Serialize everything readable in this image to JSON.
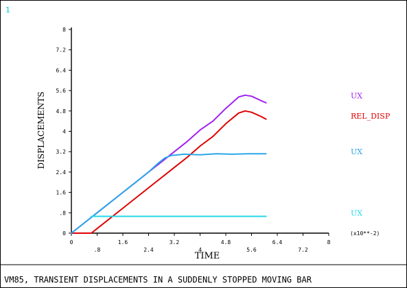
{
  "window": {
    "number": "1"
  },
  "caption": "VM85, TRANSIENT DISPLACEMENTS IN A SUDDENLY STOPPED MOVING BAR",
  "colors": {
    "frame": "#000000",
    "window_number": "#00c8d0",
    "ux_purple": "#a020f0",
    "rel_disp_red": "#e00000",
    "ux_blue": "#2aa6e8",
    "ux_cyan": "#22d8e8"
  },
  "chart_data": {
    "type": "line",
    "title": "",
    "xlabel": "TIME",
    "ylabel": "DISPLACEMENTS",
    "x_multiplier_label": "(x10**-2)",
    "xlim": [
      0,
      8
    ],
    "ylim": [
      0,
      8
    ],
    "grid": false,
    "legend": "right",
    "x_ticks": [
      {
        "value": 0,
        "label": "0"
      },
      {
        "value": 0.8,
        "label": ".8"
      },
      {
        "value": 1.6,
        "label": "1.6"
      },
      {
        "value": 2.4,
        "label": "2.4"
      },
      {
        "value": 3.2,
        "label": "3.2"
      },
      {
        "value": 4,
        "label": "4"
      },
      {
        "value": 4.8,
        "label": "4.8"
      },
      {
        "value": 5.6,
        "label": "5.6"
      },
      {
        "value": 6.4,
        "label": "6.4"
      },
      {
        "value": 7.2,
        "label": "7.2"
      },
      {
        "value": 8,
        "label": "8"
      }
    ],
    "y_ticks": [
      {
        "value": 0,
        "label": "0"
      },
      {
        "value": 0.8,
        "label": ".8"
      },
      {
        "value": 1.6,
        "label": "1.6"
      },
      {
        "value": 2.4,
        "label": "2.4"
      },
      {
        "value": 3.2,
        "label": "3.2"
      },
      {
        "value": 4,
        "label": "4"
      },
      {
        "value": 4.8,
        "label": "4.8"
      },
      {
        "value": 5.6,
        "label": "5.6"
      },
      {
        "value": 6.4,
        "label": "6.4"
      },
      {
        "value": 7.2,
        "label": "7.2"
      },
      {
        "value": 8,
        "label": "8"
      }
    ],
    "series": [
      {
        "name": "UX",
        "color": "#a020f0",
        "label_y": 5.4,
        "x": [
          0,
          0.8,
          1.6,
          2.4,
          2.8,
          3.2,
          3.6,
          4.0,
          4.4,
          4.8,
          5.2,
          5.4,
          5.6,
          5.9,
          6.05
        ],
        "y": [
          0,
          0.8,
          1.6,
          2.4,
          2.8,
          3.2,
          3.6,
          4.05,
          4.4,
          4.9,
          5.35,
          5.42,
          5.38,
          5.2,
          5.12
        ]
      },
      {
        "name": "REL_DISP",
        "color": "#e00000",
        "label_y": 4.6,
        "x": [
          0,
          0.62,
          0.8,
          1.6,
          2.4,
          3.2,
          3.6,
          4.0,
          4.4,
          4.8,
          5.2,
          5.4,
          5.6,
          5.9,
          6.05
        ],
        "y": [
          0,
          0,
          0.18,
          0.98,
          1.78,
          2.58,
          2.98,
          3.42,
          3.8,
          4.3,
          4.72,
          4.8,
          4.75,
          4.58,
          4.48
        ]
      },
      {
        "name": "UX",
        "color": "#2aa6e8",
        "label_y": 3.2,
        "x": [
          0,
          0.8,
          1.6,
          2.4,
          2.7,
          2.9,
          3.1,
          3.5,
          4.0,
          4.5,
          5.0,
          5.5,
          6.05
        ],
        "y": [
          0,
          0.8,
          1.6,
          2.4,
          2.75,
          2.95,
          3.05,
          3.1,
          3.08,
          3.12,
          3.1,
          3.12,
          3.12
        ]
      },
      {
        "name": "UX",
        "color": "#22d8e8",
        "label_y": 0.8,
        "x": [
          0.62,
          6.05
        ],
        "y": [
          0.66,
          0.66
        ]
      }
    ]
  }
}
